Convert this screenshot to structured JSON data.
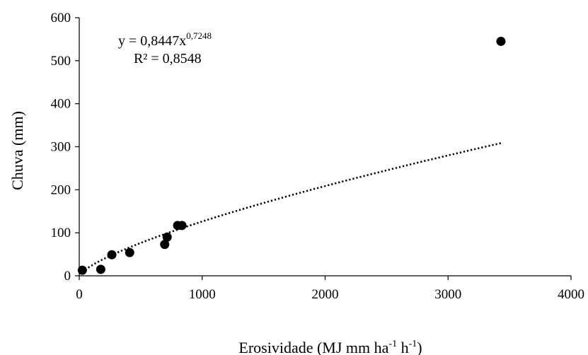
{
  "chart_data": {
    "type": "scatter",
    "xlabel": "Erosividade (MJ mm ha",
    "xlabel_sup1": "-1",
    "xlabel_mid": " h",
    "xlabel_sup2": "-1",
    "xlabel_end": ")",
    "ylabel": "Chuva (mm)",
    "xlim": [
      0,
      4000
    ],
    "ylim": [
      0,
      600
    ],
    "xticks": [
      0,
      1000,
      2000,
      3000,
      4000
    ],
    "yticks": [
      0,
      100,
      200,
      300,
      400,
      500,
      600
    ],
    "grid": false,
    "points": [
      {
        "x": 25,
        "y": 13
      },
      {
        "x": 175,
        "y": 15
      },
      {
        "x": 265,
        "y": 49
      },
      {
        "x": 410,
        "y": 54
      },
      {
        "x": 695,
        "y": 73
      },
      {
        "x": 715,
        "y": 90
      },
      {
        "x": 800,
        "y": 117
      },
      {
        "x": 835,
        "y": 117
      },
      {
        "x": 3430,
        "y": 545
      }
    ],
    "trendline": {
      "type": "power",
      "a": 0.8447,
      "b": 0.7248,
      "x_range": [
        25,
        3430
      ],
      "style": "dotted",
      "equation_base": "y = 0,8447x",
      "equation_exp": "0,7248",
      "r2": "R² = 0,8548"
    },
    "series_color": "#000000"
  }
}
